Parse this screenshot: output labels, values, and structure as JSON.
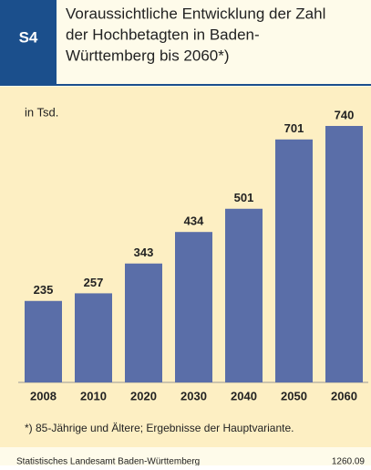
{
  "chart_data": {
    "type": "bar",
    "badge": "S4",
    "title": [
      "Voraussichtliche Entwicklung der Zahl",
      "der Hochbetagten in Baden-",
      "Württemberg bis 2060*)"
    ],
    "unit_label": "in Tsd.",
    "categories": [
      "2008",
      "2010",
      "2020",
      "2030",
      "2040",
      "2050",
      "2060"
    ],
    "values": [
      235,
      257,
      343,
      434,
      501,
      701,
      740
    ],
    "color": "#5a6ea8",
    "footnote": "*) 85-Jährige und Ältere; Ergebnisse der Hauptvariante.",
    "source": "Statistisches Landesamt Baden-Württemberg",
    "code": "1260.09"
  }
}
